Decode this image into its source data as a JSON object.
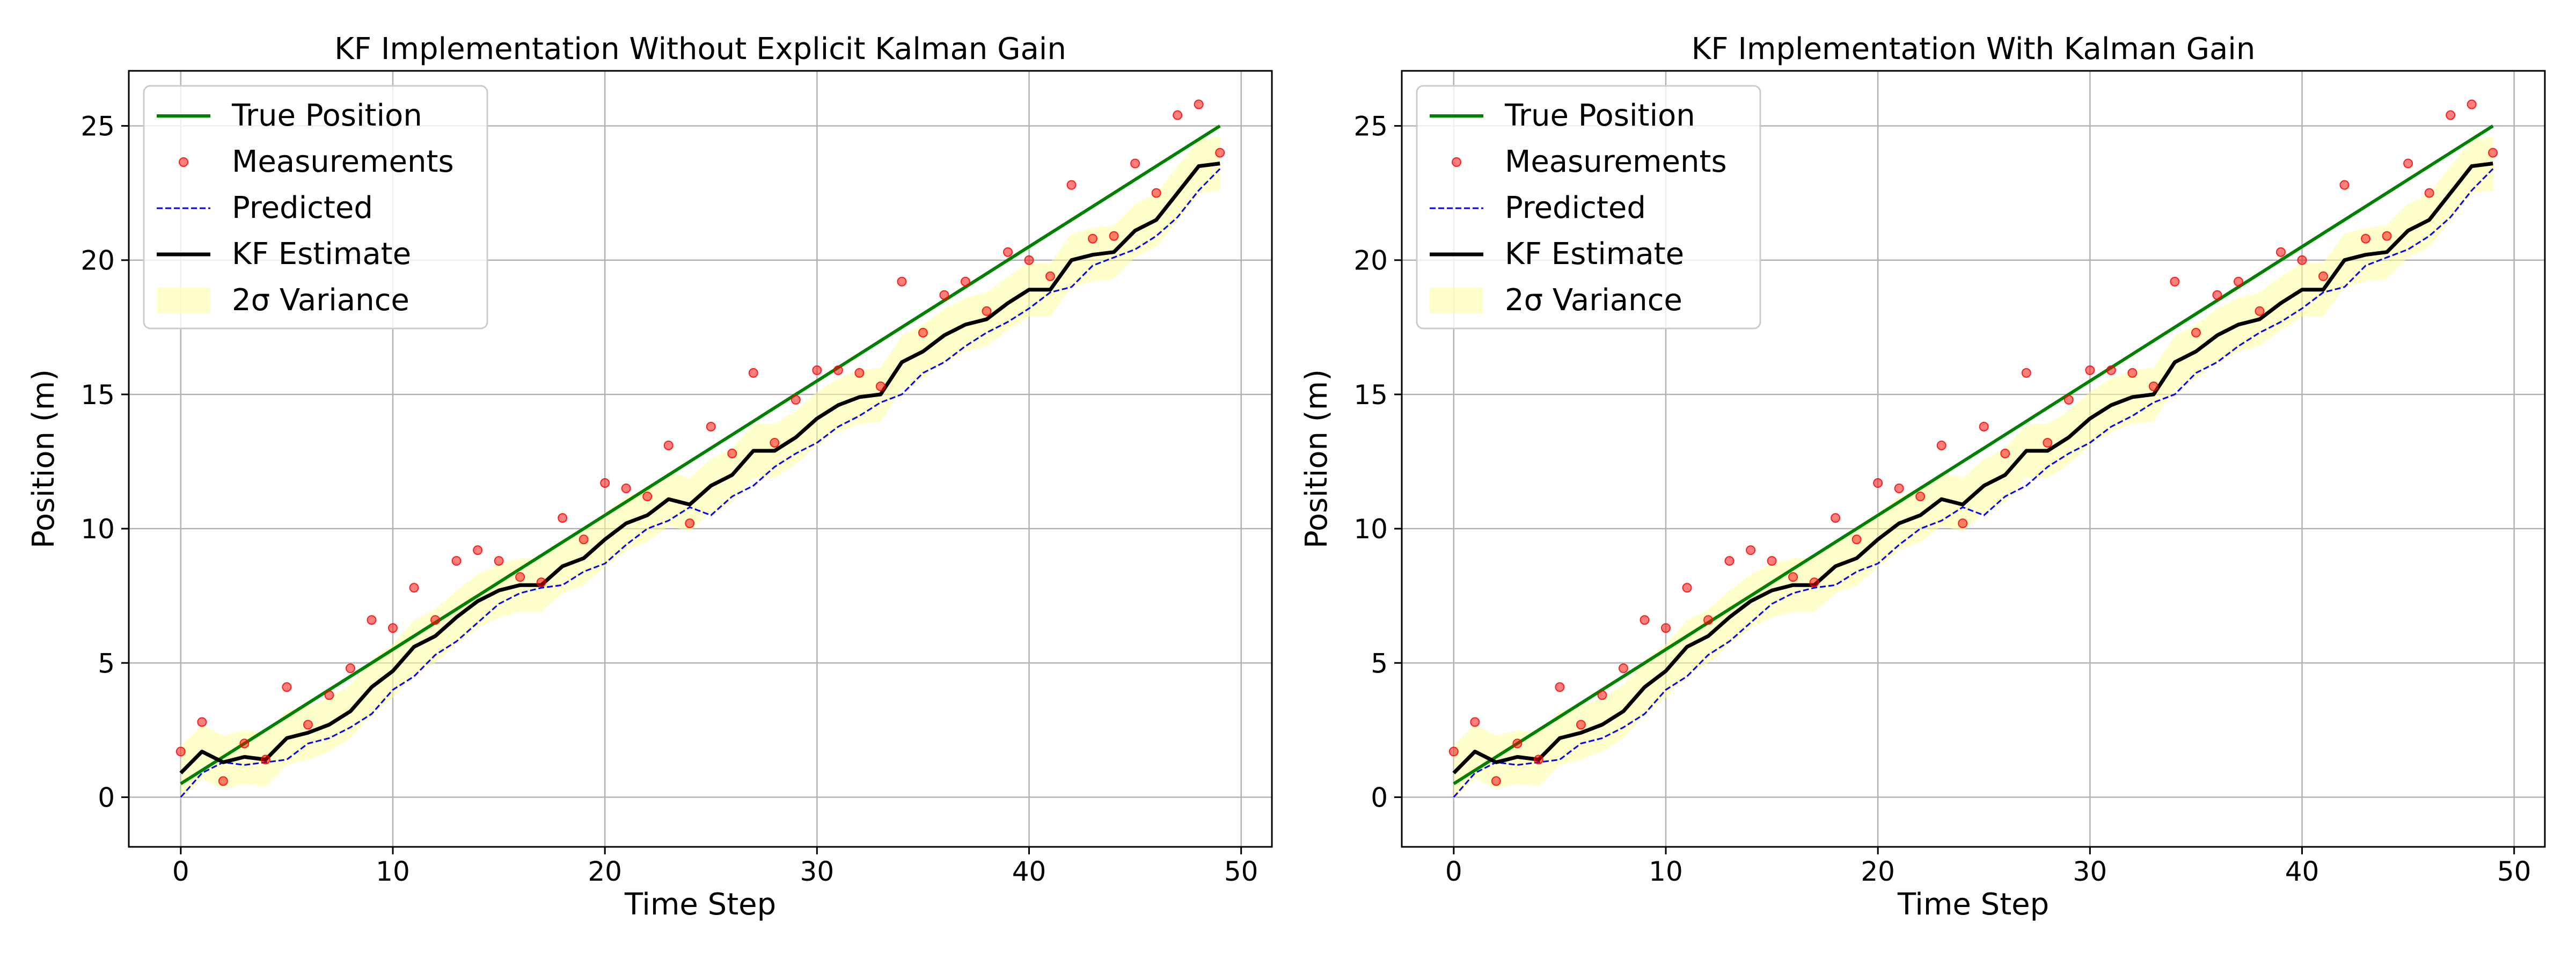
{
  "figure": {
    "legend_labels": {
      "true": "True Position",
      "meas": "Measurements",
      "pred": "Predicted",
      "est": "KF Estimate",
      "var": "2σ Variance"
    },
    "colors": {
      "true": "#008000",
      "meas": "#ff0000",
      "pred": "#0000ff",
      "est": "#000000",
      "var": "#ffff99",
      "grid": "#b0b0b0"
    }
  },
  "chart_data": [
    {
      "type": "line",
      "title": "KF Implementation Without Explicit Kalman Gain",
      "xlabel": "Time Step",
      "ylabel": "Position (m)",
      "xlim": [
        -2.45,
        51.45
      ],
      "ylim": [
        -1.85,
        27.05
      ],
      "xticks": [
        0,
        10,
        20,
        30,
        40,
        50
      ],
      "yticks": [
        0,
        5,
        10,
        15,
        20,
        25
      ],
      "grid": true,
      "legend_position": "top-left",
      "x": [
        0,
        1,
        2,
        3,
        4,
        5,
        6,
        7,
        8,
        9,
        10,
        11,
        12,
        13,
        14,
        15,
        16,
        17,
        18,
        19,
        20,
        21,
        22,
        23,
        24,
        25,
        26,
        27,
        28,
        29,
        30,
        31,
        32,
        33,
        34,
        35,
        36,
        37,
        38,
        39,
        40,
        41,
        42,
        43,
        44,
        45,
        46,
        47,
        48,
        49
      ],
      "series": [
        {
          "name": "True Position",
          "style": "line",
          "values": [
            0.5,
            1.0,
            1.5,
            2.0,
            2.5,
            3.0,
            3.5,
            4.0,
            4.5,
            5.0,
            5.5,
            6.0,
            6.5,
            7.0,
            7.5,
            8.0,
            8.5,
            9.0,
            9.5,
            10.0,
            10.5,
            11.0,
            11.5,
            12.0,
            12.5,
            13.0,
            13.5,
            14.0,
            14.5,
            15.0,
            15.5,
            16.0,
            16.5,
            17.0,
            17.5,
            18.0,
            18.5,
            19.0,
            19.5,
            20.0,
            20.5,
            21.0,
            21.5,
            22.0,
            22.5,
            23.0,
            23.5,
            24.0,
            24.5,
            25.0
          ]
        },
        {
          "name": "Measurements",
          "style": "markers",
          "values": [
            1.7,
            2.8,
            0.6,
            2.0,
            1.4,
            4.1,
            2.7,
            3.8,
            4.8,
            6.6,
            6.3,
            7.8,
            6.6,
            8.8,
            9.2,
            8.8,
            8.2,
            8.0,
            10.4,
            9.6,
            11.7,
            11.5,
            11.2,
            13.1,
            10.2,
            13.8,
            12.8,
            15.8,
            13.2,
            14.8,
            15.9,
            15.9,
            15.8,
            15.3,
            19.2,
            17.3,
            18.7,
            19.2,
            18.1,
            20.3,
            20.0,
            19.4,
            22.8,
            20.8,
            20.9,
            23.6,
            22.5,
            25.4,
            25.8,
            24.0
          ]
        },
        {
          "name": "Predicted",
          "style": "dashed",
          "values": [
            0.0,
            0.9,
            1.3,
            1.2,
            1.3,
            1.4,
            2.0,
            2.2,
            2.6,
            3.1,
            4.0,
            4.5,
            5.3,
            5.8,
            6.5,
            7.2,
            7.6,
            7.8,
            7.9,
            8.4,
            8.7,
            9.4,
            10.0,
            10.3,
            10.8,
            10.5,
            11.2,
            11.6,
            12.3,
            12.8,
            13.2,
            13.8,
            14.2,
            14.7,
            15.0,
            15.8,
            16.2,
            16.8,
            17.3,
            17.7,
            18.2,
            18.8,
            19.0,
            19.8,
            20.1,
            20.4,
            20.9,
            21.6,
            22.6,
            23.4
          ]
        },
        {
          "name": "KF Estimate",
          "style": "line",
          "values": [
            0.9,
            1.7,
            1.3,
            1.5,
            1.4,
            2.2,
            2.4,
            2.7,
            3.2,
            4.1,
            4.7,
            5.6,
            6.0,
            6.7,
            7.3,
            7.7,
            7.9,
            7.9,
            8.6,
            8.9,
            9.6,
            10.2,
            10.5,
            11.1,
            10.9,
            11.6,
            12.0,
            12.9,
            12.9,
            13.4,
            14.1,
            14.6,
            14.9,
            15.0,
            16.2,
            16.6,
            17.2,
            17.6,
            17.8,
            18.4,
            18.9,
            18.9,
            20.0,
            20.2,
            20.3,
            21.1,
            21.5,
            22.5,
            23.5,
            23.6
          ]
        },
        {
          "name": "2σ Variance",
          "style": "band",
          "halfwidth": 1.0
        }
      ]
    },
    {
      "type": "line",
      "title": "KF Implementation With Kalman Gain",
      "xlabel": "Time Step",
      "ylabel": "Position (m)",
      "xlim": [
        -2.45,
        51.45
      ],
      "ylim": [
        -1.85,
        27.05
      ],
      "xticks": [
        0,
        10,
        20,
        30,
        40,
        50
      ],
      "yticks": [
        0,
        5,
        10,
        15,
        20,
        25
      ],
      "grid": true,
      "legend_position": "top-left",
      "x": [
        0,
        1,
        2,
        3,
        4,
        5,
        6,
        7,
        8,
        9,
        10,
        11,
        12,
        13,
        14,
        15,
        16,
        17,
        18,
        19,
        20,
        21,
        22,
        23,
        24,
        25,
        26,
        27,
        28,
        29,
        30,
        31,
        32,
        33,
        34,
        35,
        36,
        37,
        38,
        39,
        40,
        41,
        42,
        43,
        44,
        45,
        46,
        47,
        48,
        49
      ],
      "series": [
        {
          "name": "True Position",
          "style": "line",
          "values": [
            0.5,
            1.0,
            1.5,
            2.0,
            2.5,
            3.0,
            3.5,
            4.0,
            4.5,
            5.0,
            5.5,
            6.0,
            6.5,
            7.0,
            7.5,
            8.0,
            8.5,
            9.0,
            9.5,
            10.0,
            10.5,
            11.0,
            11.5,
            12.0,
            12.5,
            13.0,
            13.5,
            14.0,
            14.5,
            15.0,
            15.5,
            16.0,
            16.5,
            17.0,
            17.5,
            18.0,
            18.5,
            19.0,
            19.5,
            20.0,
            20.5,
            21.0,
            21.5,
            22.0,
            22.5,
            23.0,
            23.5,
            24.0,
            24.5,
            25.0
          ]
        },
        {
          "name": "Measurements",
          "style": "markers",
          "values": [
            1.7,
            2.8,
            0.6,
            2.0,
            1.4,
            4.1,
            2.7,
            3.8,
            4.8,
            6.6,
            6.3,
            7.8,
            6.6,
            8.8,
            9.2,
            8.8,
            8.2,
            8.0,
            10.4,
            9.6,
            11.7,
            11.5,
            11.2,
            13.1,
            10.2,
            13.8,
            12.8,
            15.8,
            13.2,
            14.8,
            15.9,
            15.9,
            15.8,
            15.3,
            19.2,
            17.3,
            18.7,
            19.2,
            18.1,
            20.3,
            20.0,
            19.4,
            22.8,
            20.8,
            20.9,
            23.6,
            22.5,
            25.4,
            25.8,
            24.0
          ]
        },
        {
          "name": "Predicted",
          "style": "dashed",
          "values": [
            0.0,
            0.9,
            1.3,
            1.2,
            1.3,
            1.4,
            2.0,
            2.2,
            2.6,
            3.1,
            4.0,
            4.5,
            5.3,
            5.8,
            6.5,
            7.2,
            7.6,
            7.8,
            7.9,
            8.4,
            8.7,
            9.4,
            10.0,
            10.3,
            10.8,
            10.5,
            11.2,
            11.6,
            12.3,
            12.8,
            13.2,
            13.8,
            14.2,
            14.7,
            15.0,
            15.8,
            16.2,
            16.8,
            17.3,
            17.7,
            18.2,
            18.8,
            19.0,
            19.8,
            20.1,
            20.4,
            20.9,
            21.6,
            22.6,
            23.4
          ]
        },
        {
          "name": "KF Estimate",
          "style": "line",
          "values": [
            0.9,
            1.7,
            1.3,
            1.5,
            1.4,
            2.2,
            2.4,
            2.7,
            3.2,
            4.1,
            4.7,
            5.6,
            6.0,
            6.7,
            7.3,
            7.7,
            7.9,
            7.9,
            8.6,
            8.9,
            9.6,
            10.2,
            10.5,
            11.1,
            10.9,
            11.6,
            12.0,
            12.9,
            12.9,
            13.4,
            14.1,
            14.6,
            14.9,
            15.0,
            16.2,
            16.6,
            17.2,
            17.6,
            17.8,
            18.4,
            18.9,
            18.9,
            20.0,
            20.2,
            20.3,
            21.1,
            21.5,
            22.5,
            23.5,
            23.6
          ]
        },
        {
          "name": "2σ Variance",
          "style": "band",
          "halfwidth": 1.0
        }
      ]
    }
  ]
}
